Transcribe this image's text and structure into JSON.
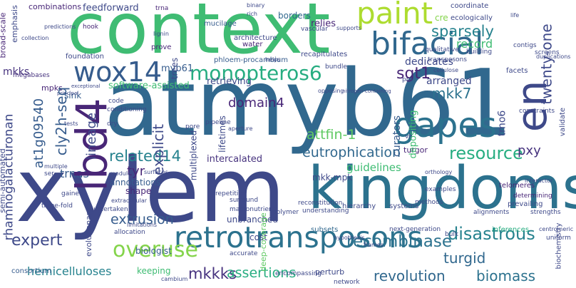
{
  "words": {
    "xylem": "xylem",
    "atmyb61": "atmyb61",
    "context": "context",
    "kingdoms": "kingdoms",
    "retrotransposons": "retrotransposons",
    "gapes": "gapes",
    "bifacial": "bifacial",
    "paint": "paint",
    "lbd4": "lbd4",
    "wox14": "wox14",
    "en": "en",
    "monopteros6": "monopteros6",
    "resource": "resource",
    "overuse": "overuse",
    "rhamnogalacturonan": "rhamnogalacturonan",
    "recombinase": "recombinase",
    "disastrous": "disastrous",
    "revolution": "revolution",
    "biomass": "biomass",
    "eutrophication": "eutrophication",
    "mkkks": "mkkks",
    "assertions": "assertions",
    "sgt1": "sgt1",
    "mkk7": "mkk7",
    "lineage": "lineage",
    "at1g09540": "at1g09540",
    "cly2h_seq": "cly2h-seq",
    "sparsely": "sparsely",
    "twenty_one": "twenty-one",
    "pxy": "pxy",
    "tmo6": "tmo6",
    "attfin_1": "attfin-1",
    "related14": "related14",
    "explicit": "explicit",
    "expert": "expert",
    "extrusion": "extrusion",
    "turgid": "turgid",
    "hemicelluloses": "hemicelluloses",
    "guidelines": "guidelines",
    "tyr": "tyr",
    "trnas": "trnas",
    "domain4": "domain4",
    "curators": "curators",
    "record": "record",
    "arranged": "arranged",
    "dedicates": "dedicates",
    "mkks": "mkks",
    "myb61": "myb61",
    "software_assisted": "software-assisted",
    "retrieving": "retrieving",
    "relies": "relies",
    "feedforward": "feedforward",
    "combinations": "combinations",
    "borders": "borders",
    "biologist": "biologist",
    "unbranched": "unbranched",
    "intercalated": "intercalated",
    "mkk_mpk": "mkk-mpk",
    "annotations": "annotations",
    "shape": "shape",
    "keeping": "keeping",
    "perturb": "perturb",
    "deep_coverage": "deep-coverage",
    "cost": "cost",
    "depositing": "depositing",
    "turgor": "turgor",
    "multiplexed": "multiplexed",
    "lifetimes": "lifetimes",
    "semi_automated": "semi-automated",
    "broad_scale": "broad-scale",
    "emphasis": "emphasis",
    "consortium": "consortium",
    "evolutionary": "evolutionary",
    "sink": "sink",
    "trees": "trees",
    "mpks": "mpks",
    "megabases": "megabases",
    "coordinate": "coordinate",
    "ecologically": "ecologically",
    "cre": "cre",
    "biochemistry": "biochemistry",
    "vascular": "vascular",
    "architecture": "architecture",
    "water": "water",
    "mucilage": "mucilage",
    "phloem_procambium": "phloem-procambium",
    "recapitulates": "recapitulates",
    "foundation": "foundation",
    "prove": "prove",
    "hook": "hook",
    "trna": "trna",
    "building": "building",
    "qualitative": "qualitative",
    "transposons": "transposons",
    "contigs": "contigs",
    "screens": "screens",
    "facets": "facets",
    "constraints": "constraints",
    "validate": "validate",
    "telomeres": "telomeres",
    "determining": "determining",
    "prevailing": "prevailing",
    "strengths": "strengths",
    "alignments": "alignments",
    "methods": "methods",
    "examples": "examples",
    "systems": "systems",
    "hierarchy": "hierarchy",
    "reconstitution": "reconstitution",
    "understanding": "understanding",
    "subsets": "subsets",
    "next_generation": "next-generation",
    "inferences": "inferences",
    "uniform": "uniform",
    "centromeric": "centromeric",
    "bulk": "bulk",
    "network": "network",
    "encompassing": "encompassing",
    "accurate": "accurate",
    "polymer": "polymer",
    "surround": "surround",
    "repetitive": "repetitive",
    "pipeline": "pipeline",
    "pore": "pore",
    "code": "code",
    "conditioning": "conditioning",
    "dry": "dry",
    "gained": "gained",
    "three_fold": "three-fold",
    "undertaken": "undertaken",
    "allocation": "allocation",
    "limitations": "limitations",
    "cambium": "cambium",
    "extracellular": "extracellular",
    "macronutrient": "macronutrient",
    "aperture": "aperture",
    "bundle": "bundle",
    "opposing": "opposing",
    "ser": "ser",
    "vii": "vii",
    "pro": "pro",
    "binary": "binary",
    "rich": "rich",
    "life": "life",
    "supports": "supports",
    "reading": "reading",
    "orthology": "orthology",
    "interactor": "interactor",
    "genomes": "genomes",
    "masse": "masse",
    "duplications": "duplications",
    "predictions": "predictions",
    "sugars": "sugars",
    "modules": "modules",
    "surfaces": "surfaces",
    "closure": "closure",
    "hypothesis": "hypothesis",
    "primary": "primary",
    "lignin": "lignin",
    "cellulose": "cellulose",
    "active": "active",
    "acids": "acids",
    "multiple": "multiple",
    "tests": "tests",
    "frames": "frames",
    "amino": "amino",
    "collection": "collection",
    "exceptional": "exceptional",
    "nitrogen_containing": "nitrogen-containing",
    "principal": "principal",
    "organism": "organism",
    "agricultural": "agricultural",
    "hsp90": "hsp90",
    "helps": "helps",
    "tissue": "tissue"
  },
  "colors": {
    "darkPurple": "#46327e",
    "purple": "#482677",
    "indigo": "#3e4989",
    "blue": "#365c8d",
    "slate": "#31688e",
    "steel": "#2c728e",
    "teal": "#26828e",
    "tealGreen": "#1f9e89",
    "green": "#27ad81",
    "lightGreen": "#3fbc73",
    "lime": "#5ec962",
    "yellowGreen": "#84d44b",
    "chartreuse": "#addc30",
    "yellow": "#c8e020",
    "brightYellow": "#fde725"
  }
}
